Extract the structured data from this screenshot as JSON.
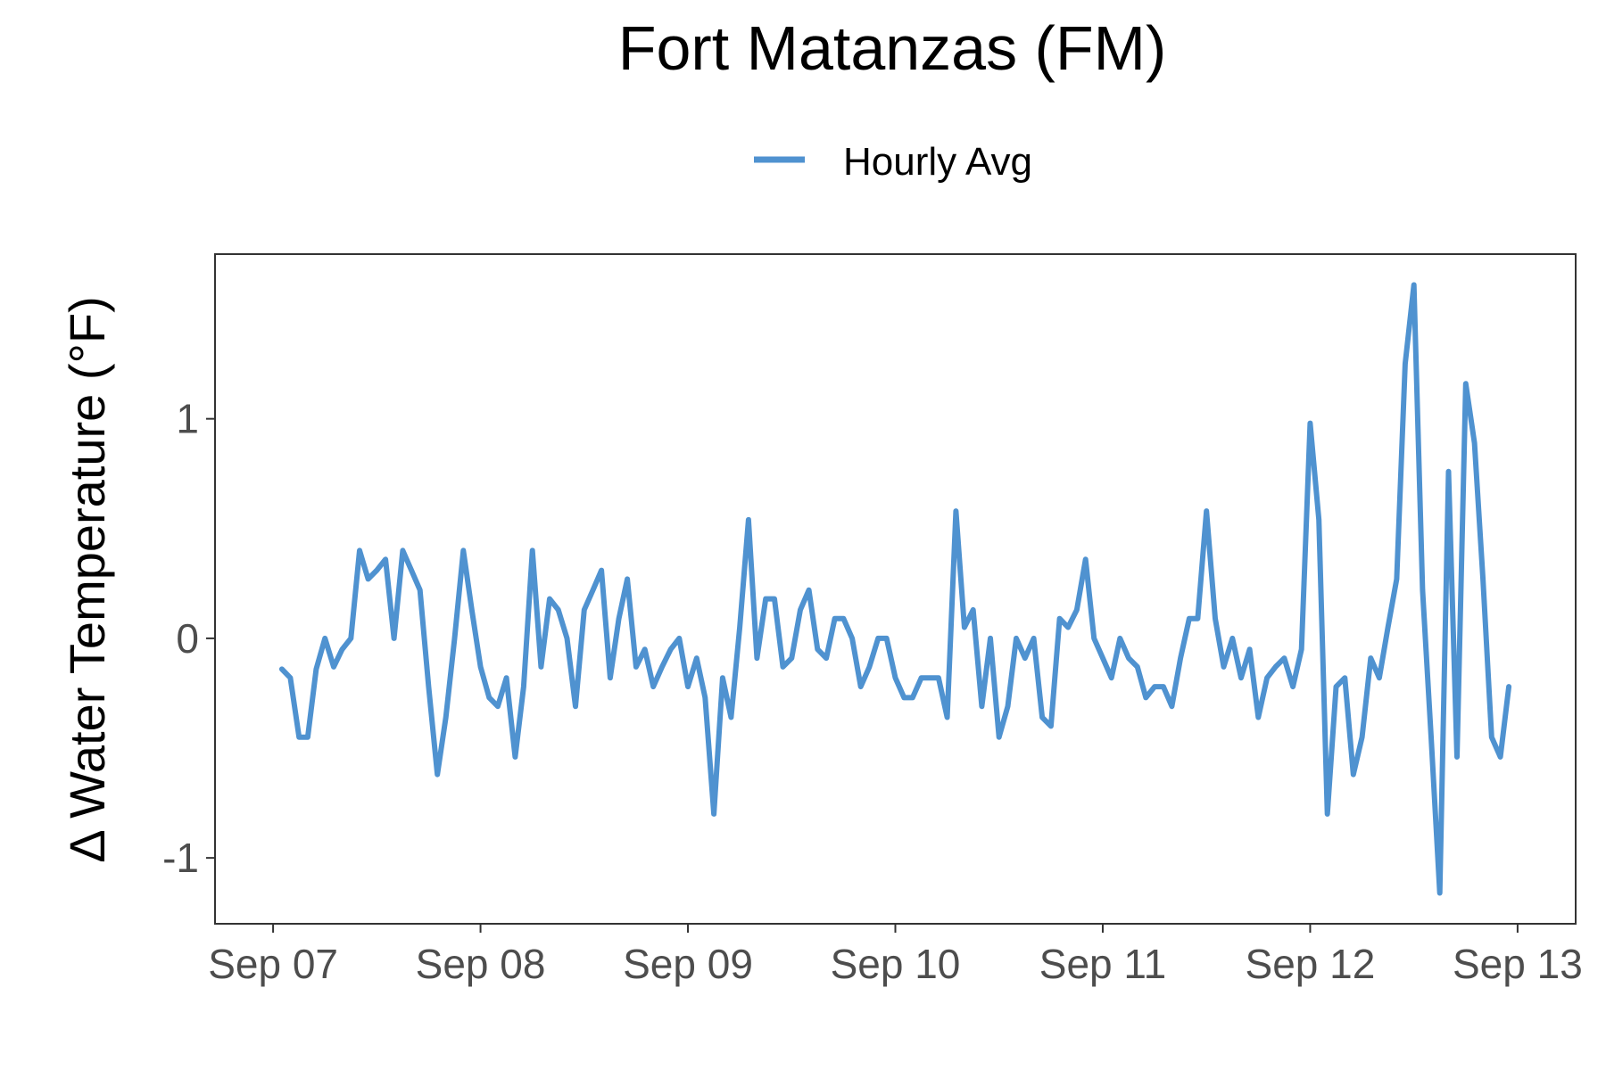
{
  "chart_data": {
    "type": "line",
    "title": "Fort Matanzas (FM)",
    "xlabel": "",
    "ylabel": "Δ Water Temperature (°F)",
    "x_ticks": [
      "Sep 07",
      "Sep 08",
      "Sep 09",
      "Sep 10",
      "Sep 11",
      "Sep 12",
      "Sep 13"
    ],
    "y_ticks": [
      1,
      0,
      -1
    ],
    "ylim": [
      -1.3,
      1.75
    ],
    "xlim_days": [
      -0.28,
      6.28
    ],
    "grid": false,
    "legend_position": "top",
    "series": [
      {
        "name": "Hourly Avg",
        "color": "#4f92d0",
        "x_days": [
          0.042,
          0.083,
          0.125,
          0.167,
          0.208,
          0.25,
          0.292,
          0.333,
          0.375,
          0.417,
          0.458,
          0.5,
          0.542,
          0.583,
          0.625,
          0.667,
          0.708,
          0.75,
          0.792,
          0.833,
          0.875,
          0.917,
          0.958,
          1.0,
          1.042,
          1.083,
          1.125,
          1.167,
          1.208,
          1.25,
          1.292,
          1.333,
          1.375,
          1.417,
          1.458,
          1.5,
          1.542,
          1.583,
          1.625,
          1.667,
          1.708,
          1.75,
          1.792,
          1.833,
          1.875,
          1.917,
          1.958,
          2.0,
          2.042,
          2.083,
          2.125,
          2.167,
          2.208,
          2.25,
          2.292,
          2.333,
          2.375,
          2.417,
          2.458,
          2.5,
          2.542,
          2.583,
          2.625,
          2.667,
          2.708,
          2.75,
          2.792,
          2.833,
          2.875,
          2.917,
          2.958,
          3.0,
          3.042,
          3.083,
          3.125,
          3.167,
          3.208,
          3.25,
          3.292,
          3.333,
          3.375,
          3.417,
          3.458,
          3.5,
          3.542,
          3.583,
          3.625,
          3.667,
          3.708,
          3.75,
          3.792,
          3.833,
          3.875,
          3.917,
          3.958,
          4.0,
          4.042,
          4.083,
          4.125,
          4.167,
          4.208,
          4.25,
          4.292,
          4.333,
          4.375,
          4.417,
          4.458,
          4.5,
          4.542,
          4.583,
          4.625,
          4.667,
          4.708,
          4.75,
          4.792,
          4.833,
          4.875,
          4.917,
          4.958,
          5.0,
          5.042,
          5.083,
          5.125,
          5.167,
          5.208,
          5.25,
          5.292,
          5.333,
          5.375,
          5.417,
          5.458,
          5.5,
          5.542,
          5.583,
          5.625,
          5.667,
          5.708,
          5.75,
          5.792,
          5.833,
          5.875,
          5.917,
          5.958
        ],
        "values": [
          -0.14,
          -0.18,
          -0.45,
          -0.45,
          -0.14,
          0.0,
          -0.13,
          -0.05,
          0.0,
          0.4,
          0.27,
          0.31,
          0.36,
          0.0,
          0.4,
          0.31,
          0.22,
          -0.22,
          -0.62,
          -0.36,
          0.0,
          0.4,
          0.13,
          -0.13,
          -0.27,
          -0.31,
          -0.18,
          -0.54,
          -0.22,
          0.4,
          -0.13,
          0.18,
          0.13,
          0.0,
          -0.31,
          0.13,
          0.22,
          0.31,
          -0.18,
          0.09,
          0.27,
          -0.13,
          -0.05,
          -0.22,
          -0.13,
          -0.05,
          0.0,
          -0.22,
          -0.09,
          -0.27,
          -0.8,
          -0.18,
          -0.36,
          0.05,
          0.54,
          -0.09,
          0.18,
          0.18,
          -0.13,
          -0.09,
          0.13,
          0.22,
          -0.05,
          -0.09,
          0.09,
          0.09,
          0.0,
          -0.22,
          -0.13,
          0.0,
          0.0,
          -0.18,
          -0.27,
          -0.27,
          -0.18,
          -0.18,
          -0.18,
          -0.36,
          0.58,
          0.05,
          0.13,
          -0.31,
          0.0,
          -0.45,
          -0.31,
          0.0,
          -0.09,
          0.0,
          -0.36,
          -0.4,
          0.09,
          0.05,
          0.13,
          0.36,
          0.0,
          -0.09,
          -0.18,
          0.0,
          -0.09,
          -0.13,
          -0.27,
          -0.22,
          -0.22,
          -0.31,
          -0.09,
          0.09,
          0.09,
          0.58,
          0.09,
          -0.13,
          0.0,
          -0.18,
          -0.05,
          -0.36,
          -0.18,
          -0.13,
          -0.09,
          -0.22,
          -0.05,
          0.98,
          0.54,
          -0.8,
          -0.22,
          -0.18,
          -0.62,
          -0.45,
          -0.09,
          -0.18,
          0.05,
          0.27,
          1.25,
          1.61,
          0.22,
          -0.45,
          -1.16,
          0.76,
          -0.54,
          1.16,
          0.89,
          0.27,
          -0.45,
          -0.54,
          -0.22
        ]
      }
    ]
  }
}
